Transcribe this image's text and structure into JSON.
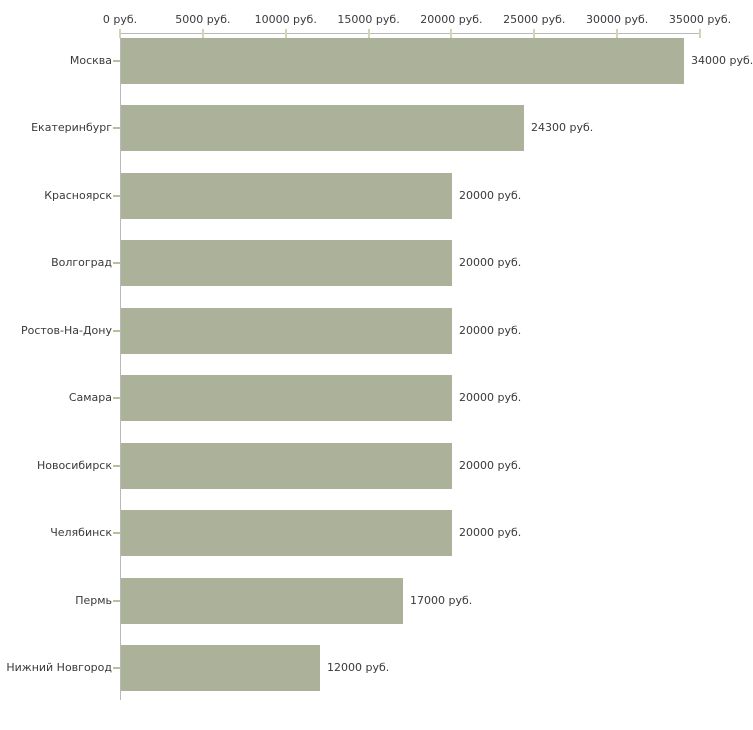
{
  "chart_data": {
    "type": "bar",
    "orientation": "horizontal",
    "title": "",
    "unit": "руб.",
    "categories": [
      "Москва",
      "Екатеринбург",
      "Красноярск",
      "Волгоград",
      "Ростов-На-Дону",
      "Самара",
      "Новосибирск",
      "Челябинск",
      "Пермь",
      "Нижний Новгород"
    ],
    "values": [
      34000,
      24300,
      20000,
      20000,
      20000,
      20000,
      20000,
      20000,
      17000,
      12000
    ],
    "value_labels": [
      "34000 руб.",
      "24300 руб.",
      "20000 руб.",
      "20000 руб.",
      "20000 руб.",
      "20000 руб.",
      "20000 руб.",
      "20000 руб.",
      "17000 руб.",
      "12000 руб."
    ],
    "xlim": [
      0,
      35000
    ],
    "x_ticks": [
      {
        "value": 0,
        "label": "0 руб."
      },
      {
        "value": 5000,
        "label": "5000 руб."
      },
      {
        "value": 10000,
        "label": "10000 руб."
      },
      {
        "value": 15000,
        "label": "15000 руб."
      },
      {
        "value": 20000,
        "label": "20000 руб."
      },
      {
        "value": 25000,
        "label": "25000 руб."
      },
      {
        "value": 30000,
        "label": "30000 руб."
      },
      {
        "value": 35000,
        "label": "35000 руб."
      }
    ],
    "grid": false,
    "legend": null,
    "axis_position": "top",
    "colors": {
      "bar": "#acb299",
      "axis_line": "#b9b9b9",
      "axis_tick": "#d2d4b4",
      "row_tick": "#bcbf9d",
      "text": "#3a3a3a",
      "background": "#ffffff"
    }
  }
}
